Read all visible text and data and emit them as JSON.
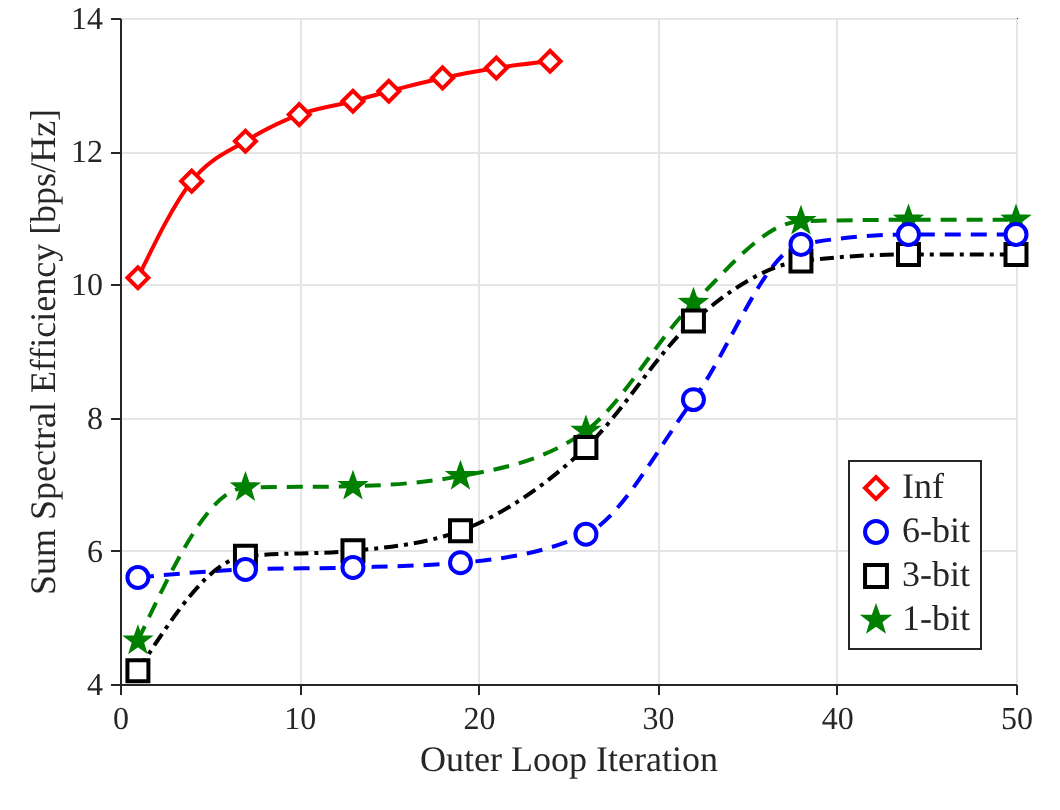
{
  "chart_data": {
    "type": "line",
    "xlabel": "Outer Loop Iteration",
    "ylabel": "Sum Spectral Efficiency [bps/Hz]",
    "xlim": [
      0,
      50
    ],
    "xticks": [
      0,
      10,
      20,
      30,
      40,
      50
    ],
    "ylim": [
      4,
      14
    ],
    "yticks": [
      4,
      6,
      8,
      10,
      12,
      14
    ],
    "grid": true,
    "legend": "bottom right",
    "series": [
      {
        "name": "Inf",
        "color": "#ff0000",
        "marker": "diamond",
        "line_style": "solid",
        "x": [
          1,
          4,
          7,
          10,
          13,
          15,
          18,
          21,
          24
        ],
        "values": [
          10.1,
          11.55,
          12.15,
          12.55,
          12.75,
          12.9,
          13.1,
          13.25,
          13.35
        ]
      },
      {
        "name": "6-bit",
        "color": "#0000ff",
        "marker": "circle",
        "line_style": "dashed",
        "x": [
          1,
          7,
          13,
          19,
          26,
          32,
          38,
          44,
          50
        ],
        "values": [
          5.6,
          5.72,
          5.75,
          5.82,
          6.25,
          8.27,
          10.6,
          10.75,
          10.75
        ]
      },
      {
        "name": "3-bit",
        "color": "#000000",
        "marker": "square",
        "line_style": "dotted",
        "x": [
          1,
          7,
          13,
          19,
          26,
          32,
          38,
          44,
          50
        ],
        "values": [
          4.2,
          5.92,
          6.0,
          6.3,
          7.55,
          9.45,
          10.35,
          10.45,
          10.45
        ]
      },
      {
        "name": "1-bit",
        "color": "#008000",
        "marker": "star",
        "line_style": "dashed",
        "x": [
          1,
          7,
          13,
          19,
          26,
          32,
          38,
          44,
          50
        ],
        "values": [
          4.65,
          6.95,
          6.97,
          7.12,
          7.8,
          9.72,
          10.95,
          10.97,
          10.97
        ]
      }
    ]
  }
}
